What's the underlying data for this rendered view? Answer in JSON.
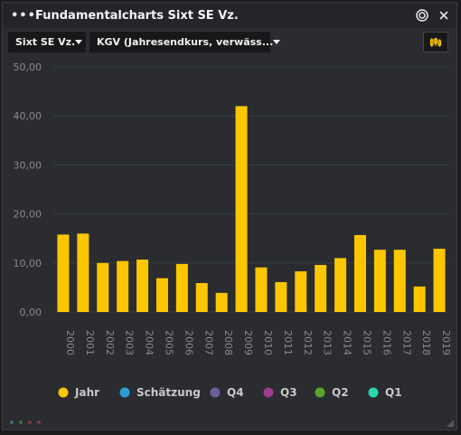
{
  "window": {
    "title": "Fundamentalcharts Sixt SE Vz.",
    "menu_icon": "more-dots-icon",
    "target_icon": "target-icon",
    "close_icon": "close-icon"
  },
  "toolbar": {
    "instrument": "Sixt SE Vz.",
    "metric": "KGV (Jahresendkurs, verwäss...",
    "settings_icon": "chart-settings-icon"
  },
  "colors": {
    "bar": "#fcc600",
    "accent": "#fcc600",
    "grid": "#3b3e42",
    "axis_text": "#8a8a8a"
  },
  "chart_data": {
    "type": "bar",
    "categories": [
      "2000",
      "2001",
      "2002",
      "2003",
      "2004",
      "2005",
      "2006",
      "2007",
      "2008",
      "2009",
      "2010",
      "2011",
      "2012",
      "2013",
      "2014",
      "2015",
      "2016",
      "2017",
      "2018",
      "2019"
    ],
    "values": [
      15.8,
      16.0,
      10.0,
      10.4,
      10.7,
      6.9,
      9.8,
      5.9,
      3.9,
      42.0,
      9.1,
      6.1,
      8.3,
      9.6,
      11.0,
      15.7,
      12.7,
      12.7,
      5.2,
      12.9
    ],
    "ylim": [
      0,
      50
    ],
    "yticks": [
      "0,00",
      "10,00",
      "20,00",
      "30,00",
      "40,00",
      "50,00"
    ],
    "grid": true,
    "legend_position": "bottom",
    "legend": [
      {
        "name": "Jahr",
        "color": "#fcc600"
      },
      {
        "name": "Schätzung",
        "color": "#2a9fd6"
      },
      {
        "name": "Q4",
        "color": "#6f5d9b"
      },
      {
        "name": "Q3",
        "color": "#9b3f8c"
      },
      {
        "name": "Q2",
        "color": "#5aa32b"
      },
      {
        "name": "Q1",
        "color": "#2bd6b0"
      }
    ]
  }
}
